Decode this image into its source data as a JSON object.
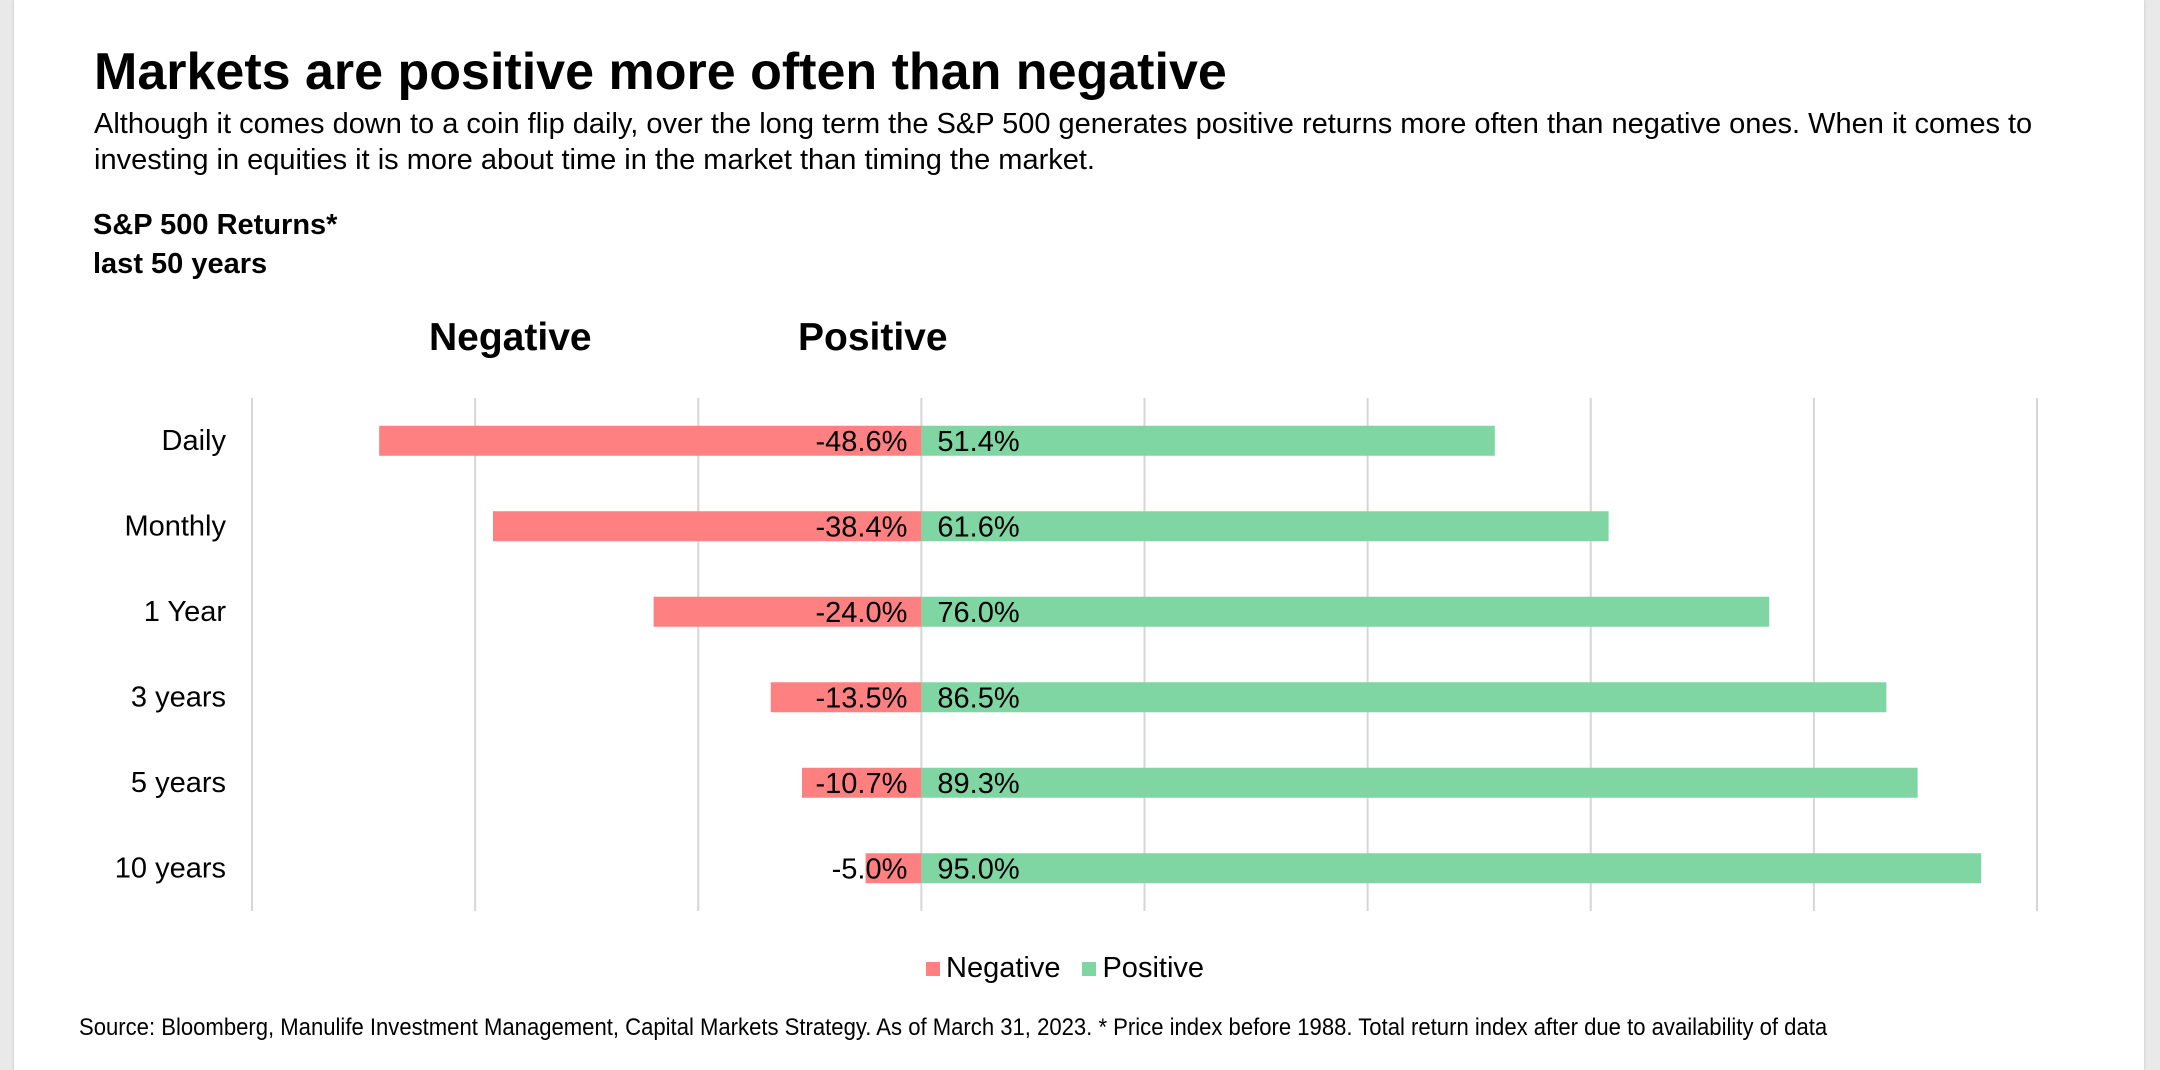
{
  "title": "Markets are positive more often than negative",
  "subtitle": "Although it comes down to a coin flip daily, over the long term the S&P 500 generates positive returns more often than negative ones. When it comes to investing in equities it is more about time in the market than timing the market.",
  "chart_heading": {
    "line1": "S&P 500 Returns*",
    "line2": "last 50 years"
  },
  "column_headers": {
    "negative": "Negative",
    "positive": "Positive"
  },
  "chart_data": {
    "type": "bar",
    "orientation": "horizontal",
    "stacking": "diverging",
    "categories": [
      "Daily",
      "Monthly",
      "1 Year",
      "3 years",
      "5 years",
      "10 years"
    ],
    "series": [
      {
        "name": "Negative",
        "color": "#ff8080",
        "values": [
          -48.6,
          -38.4,
          -24.0,
          -13.5,
          -10.7,
          -5.0
        ],
        "labels": [
          "-48.6%",
          "-38.4%",
          "-24.0%",
          "-13.5%",
          "-10.7%",
          "-5.0%"
        ]
      },
      {
        "name": "Positive",
        "color": "#7fd6a2",
        "values": [
          51.4,
          61.6,
          76.0,
          86.5,
          89.3,
          95.0
        ],
        "labels": [
          "51.4%",
          "61.6%",
          "76.0%",
          "86.5%",
          "89.3%",
          "95.0%"
        ]
      }
    ],
    "xlim": [
      -60,
      100
    ],
    "grid": true,
    "tick_labels_shown": false,
    "legend_position": "bottom-center"
  },
  "legend": {
    "negative": "Negative",
    "positive": "Positive"
  },
  "source": "Source: Bloomberg, Manulife Investment Management, Capital Markets Strategy. As of March 31, 2023.   * Price index before 1988. Total return index after due to availability of data"
}
